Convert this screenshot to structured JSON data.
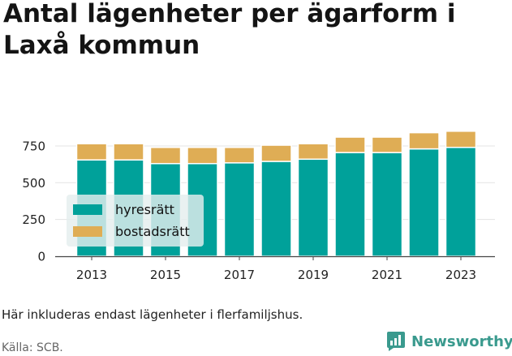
{
  "title": "Antal lägenheter per ägarform i Laxå kommun",
  "note": "Här inkluderas endast lägenheter i flerfamiljshus.",
  "source": "Källa: SCB.",
  "brand": {
    "name": "Newsworthy",
    "icon": "bar-chart-speech-bubble-icon",
    "color": "#3a9a8e"
  },
  "chart_data": {
    "type": "bar",
    "stacked": true,
    "categories": [
      "2013",
      "2014",
      "2015",
      "2016",
      "2017",
      "2018",
      "2019",
      "2020",
      "2021",
      "2022",
      "2023"
    ],
    "x_tick_labels": [
      "2013",
      "2015",
      "2017",
      "2019",
      "2021",
      "2023"
    ],
    "y_tick_labels": [
      "0",
      "250",
      "500",
      "750"
    ],
    "series": [
      {
        "name": "hyresrätt",
        "color": "#00a19a",
        "values": [
          655,
          655,
          630,
          630,
          635,
          645,
          660,
          705,
          705,
          730,
          740
        ]
      },
      {
        "name": "bostadsrätt",
        "color": "#dfad55",
        "values": [
          110,
          110,
          110,
          110,
          105,
          110,
          105,
          105,
          105,
          110,
          110
        ]
      }
    ],
    "ylim": [
      0,
      860
    ],
    "y_ticks": [
      0,
      250,
      500,
      750
    ],
    "grid": true,
    "legend_position": "bottom-left",
    "xlabel": "",
    "ylabel": ""
  }
}
